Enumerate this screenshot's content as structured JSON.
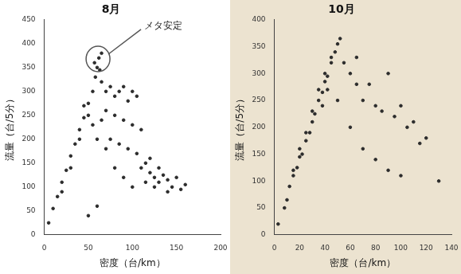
{
  "chart_data": [
    {
      "type": "scatter",
      "title": "8月",
      "x_label": "密度（台/km）",
      "y_label": "流量（台/5分）",
      "xlim": [
        0,
        200
      ],
      "xticks": [
        0,
        50,
        100,
        150,
        200
      ],
      "ylim": [
        0,
        450
      ],
      "yticks": [
        0,
        50,
        100,
        150,
        200,
        250,
        300,
        350,
        400,
        450
      ],
      "grid": false,
      "color": "#2b2b2b",
      "marker": "circle",
      "annotations": [
        {
          "text": "メタ安定",
          "x": 61,
          "y": 368
        }
      ],
      "x": [
        5,
        10,
        15,
        20,
        25,
        30,
        35,
        40,
        45,
        50,
        55,
        58,
        60,
        62,
        65,
        57,
        63,
        20,
        30,
        40,
        50,
        45,
        65,
        70,
        75,
        80,
        85,
        90,
        95,
        100,
        105,
        70,
        80,
        90,
        100,
        110,
        75,
        85,
        95,
        105,
        115,
        120,
        125,
        130,
        135,
        140,
        145,
        150,
        155,
        160,
        120,
        110,
        90,
        80,
        70,
        60,
        55,
        65,
        100,
        130,
        140,
        60,
        50,
        115,
        125
      ],
      "values": [
        25,
        55,
        80,
        110,
        135,
        165,
        190,
        220,
        245,
        275,
        300,
        330,
        350,
        370,
        380,
        360,
        345,
        90,
        140,
        200,
        250,
        270,
        320,
        300,
        310,
        290,
        300,
        310,
        280,
        300,
        290,
        260,
        250,
        240,
        230,
        220,
        200,
        190,
        180,
        170,
        150,
        130,
        120,
        110,
        125,
        115,
        100,
        120,
        95,
        105,
        160,
        140,
        120,
        140,
        180,
        200,
        230,
        240,
        100,
        140,
        90,
        60,
        40,
        110,
        100
      ]
    },
    {
      "type": "scatter",
      "title": "10月",
      "x_label": "密度（台/km）",
      "y_label": "流量（台/5分）",
      "xlim": [
        0,
        140
      ],
      "xticks": [
        0,
        20,
        40,
        60,
        80,
        100,
        120,
        140
      ],
      "ylim": [
        0,
        400
      ],
      "yticks": [
        0,
        50,
        100,
        150,
        200,
        250,
        300,
        350,
        400
      ],
      "grid": false,
      "color": "#2b2b2b",
      "marker": "circle",
      "x": [
        3,
        8,
        10,
        12,
        15,
        18,
        20,
        22,
        25,
        28,
        30,
        32,
        35,
        38,
        40,
        42,
        45,
        48,
        50,
        52,
        25,
        30,
        35,
        40,
        45,
        20,
        15,
        38,
        42,
        55,
        60,
        65,
        70,
        75,
        80,
        85,
        90,
        95,
        100,
        105,
        110,
        115,
        120,
        60,
        70,
        80,
        90,
        100,
        130,
        50,
        65
      ],
      "values": [
        20,
        50,
        65,
        90,
        110,
        125,
        145,
        150,
        175,
        190,
        210,
        225,
        250,
        265,
        285,
        295,
        320,
        340,
        355,
        365,
        190,
        230,
        270,
        300,
        330,
        160,
        120,
        240,
        270,
        320,
        300,
        330,
        250,
        280,
        240,
        230,
        300,
        220,
        240,
        200,
        210,
        170,
        180,
        200,
        160,
        140,
        120,
        110,
        100,
        250,
        280
      ]
    }
  ]
}
